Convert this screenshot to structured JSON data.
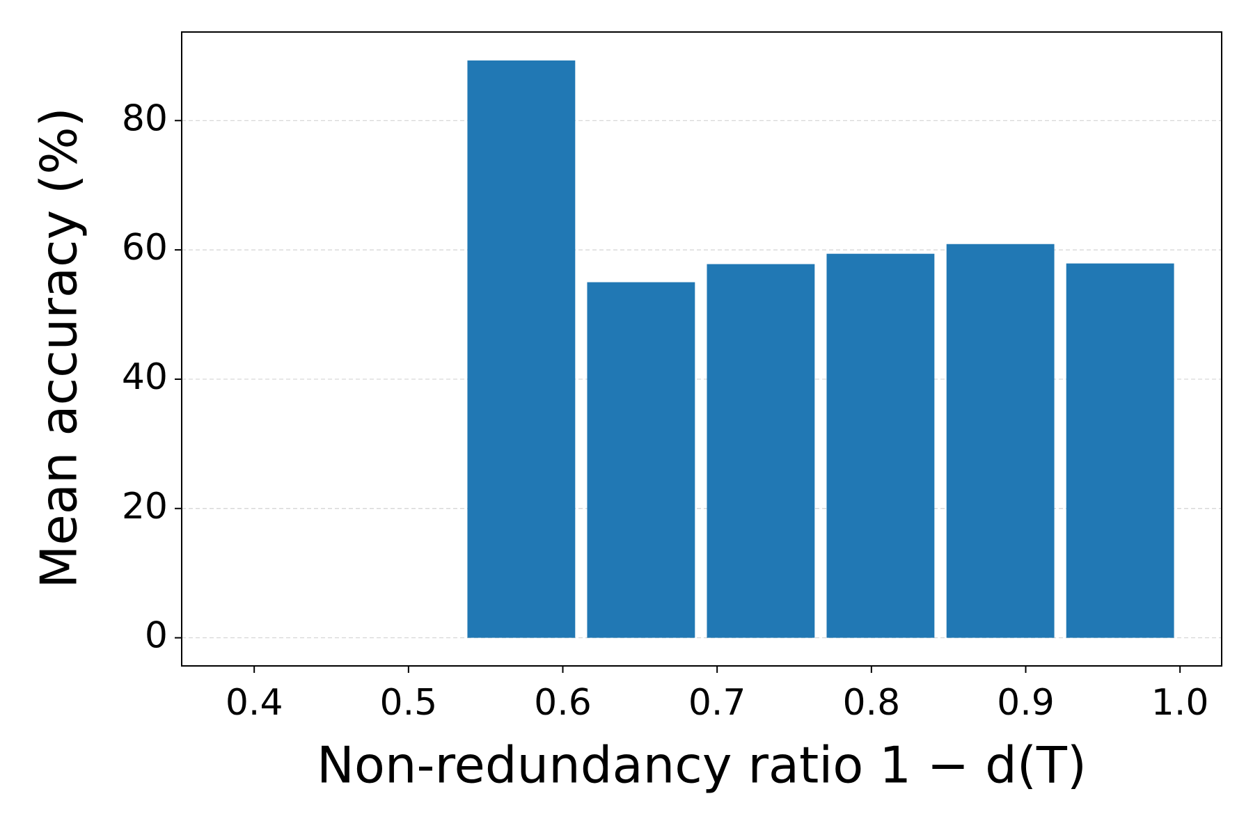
{
  "chart_data": {
    "type": "bar",
    "x_label": "Non-redundancy ratio 1 − d(T)",
    "y_label": "Mean accuracy (%)",
    "x": [
      0.5731,
      0.6507,
      0.7283,
      0.8059,
      0.8836,
      0.9612
    ],
    "values": [
      89.3,
      55.0,
      57.8,
      59.4,
      60.9,
      57.9
    ],
    "color": "#2178b4",
    "xlim": [
      0.353,
      1.027
    ],
    "ylim": [
      -4.35,
      93.7
    ],
    "xticks": [
      0.4,
      0.5,
      0.6,
      0.7,
      0.8,
      0.9,
      {
        "value": 1,
        "label": "1.0"
      }
    ],
    "yticks": [
      0,
      20,
      40,
      60,
      80
    ],
    "grid": true
  }
}
